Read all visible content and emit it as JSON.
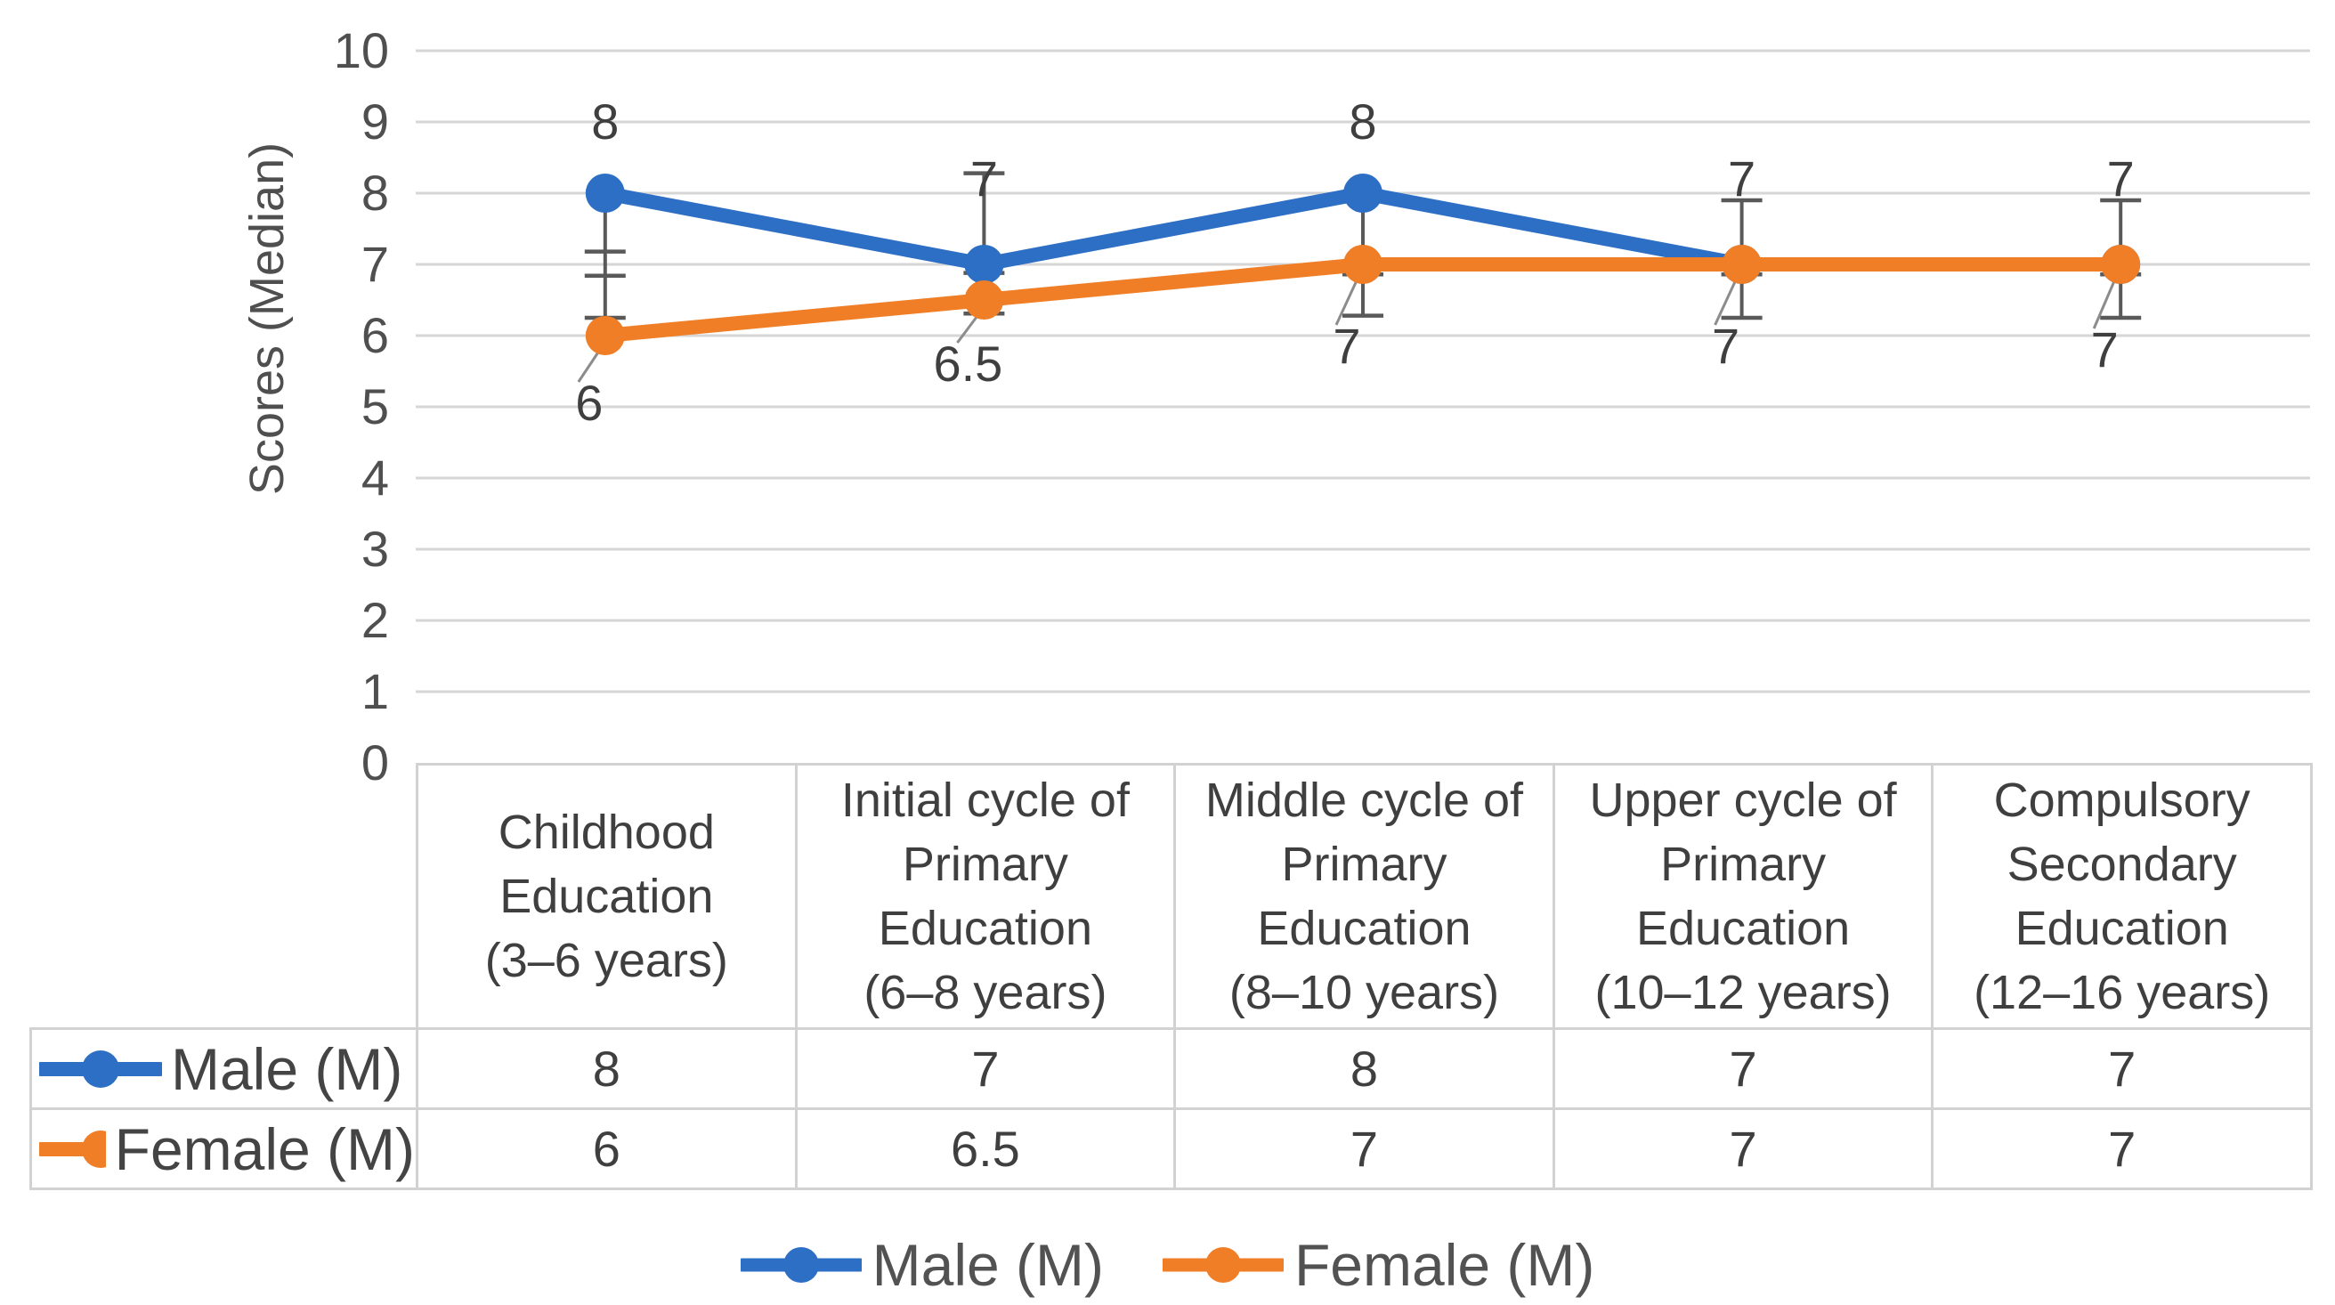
{
  "figure": {
    "background": "#ffffff"
  },
  "chart_data": {
    "type": "line",
    "title": "",
    "xlabel": "",
    "ylabel": "Scores (Median)",
    "ylim": [
      0,
      10
    ],
    "yticks": [
      0,
      1,
      2,
      3,
      4,
      5,
      6,
      7,
      8,
      9,
      10
    ],
    "grid": true,
    "legend_position": "bottom",
    "categories": [
      "Childhood Education (3–6 years)",
      "Initial cycle of Primary Education (6–8 years)",
      "Middle cycle of Primary Education (8–10 years)",
      "Upper cycle of Primary Education (10–12 years)",
      "Compulsory Secondary Education (12–16 years)"
    ],
    "series": [
      {
        "name": "Male (M)",
        "color": "#2d6fc4",
        "values": [
          8,
          7,
          8,
          7,
          7
        ],
        "data_labels": [
          "8",
          "7",
          "8",
          "7",
          "7"
        ],
        "label_side": "above",
        "label_anchor_values": [
          9.0,
          8.2,
          9.0,
          8.2,
          8.2
        ]
      },
      {
        "name": "Female (M)",
        "color": "#f07e27",
        "values": [
          6,
          6.5,
          7,
          7,
          7
        ],
        "data_labels": [
          "6",
          "6.5",
          "7",
          "7",
          "7"
        ],
        "label_side": "below",
        "label_anchor_values": [
          5.05,
          5.6,
          5.85,
          5.85,
          5.8
        ]
      }
    ],
    "error_bars": [
      {
        "span": [
          8.0,
          6.25
        ],
        "caps": [
          7.18,
          6.84,
          6.25
        ]
      },
      {
        "span": [
          8.28,
          6.31
        ],
        "caps": [
          8.28,
          6.88,
          6.31
        ]
      },
      {
        "span": [
          8.0,
          6.28
        ],
        "caps": [
          6.86,
          6.28
        ]
      },
      {
        "span": [
          7.9,
          6.25
        ],
        "caps": [
          7.9,
          6.86,
          6.25
        ]
      },
      {
        "span": [
          7.9,
          6.25
        ],
        "caps": [
          7.9,
          6.86,
          6.25
        ]
      }
    ]
  },
  "table": {
    "corner_label": "",
    "column_headers": [
      [
        "Childhood",
        "Education",
        "(3–6 years)"
      ],
      [
        "Initial cycle of",
        "Primary",
        "Education",
        "(6–8 years)"
      ],
      [
        "Middle cycle of",
        "Primary",
        "Education",
        "(8–10 years)"
      ],
      [
        "Upper cycle of",
        "Primary",
        "Education",
        "(10–12 years)"
      ],
      [
        "Compulsory",
        "Secondary",
        "Education",
        "(12–16 years)"
      ]
    ],
    "rows": [
      {
        "header": "Male (M)",
        "marker_color": "#2d6fc4",
        "cells": [
          "8",
          "7",
          "8",
          "7",
          "7"
        ]
      },
      {
        "header": "Female (M)",
        "marker_color": "#f07e27",
        "cells": [
          "6",
          "6.5",
          "7",
          "7",
          "7"
        ]
      }
    ]
  },
  "legend": {
    "items": [
      {
        "label": "Male (M)",
        "color": "#2d6fc4"
      },
      {
        "label": "Female (M)",
        "color": "#f07e27"
      }
    ]
  },
  "colors": {
    "male": "#2d6fc4",
    "female": "#f07e27",
    "gridline": "#d6d6d6",
    "table_border": "#d2d2d2",
    "error_bar": "#595959",
    "leader_line": "#8c8c8c",
    "tick_text": "#4f4f4f",
    "label_text": "#3f3f3f",
    "legend_text": "#525252"
  }
}
